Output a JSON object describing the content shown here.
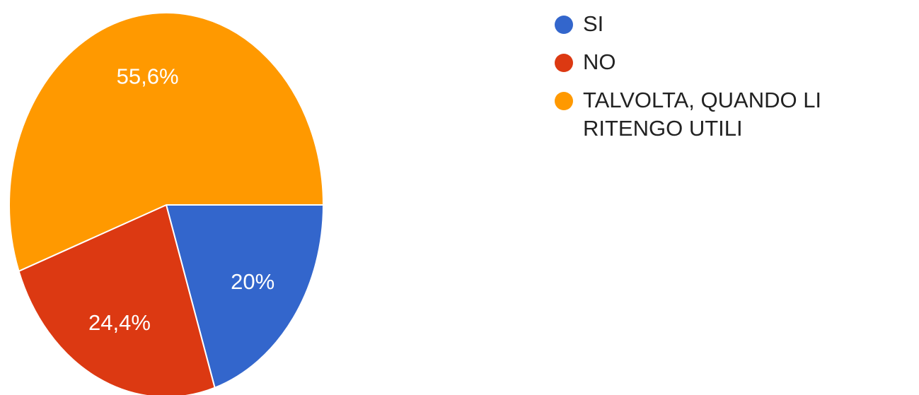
{
  "chart_data": {
    "type": "pie",
    "slices": [
      {
        "label": "SI",
        "value": 20,
        "value_label": "20%",
        "color": "#3366cc"
      },
      {
        "label": "NO",
        "value": 24.4,
        "value_label": "24,4%",
        "color": "#dc3912"
      },
      {
        "label": "TALVOLTA, QUANDO LI RITENGO UTILI",
        "value": 55.6,
        "value_label": "55,6%",
        "color": "#ff9900"
      }
    ],
    "legend_position": "right",
    "start": "3 o'clock, clockwise"
  }
}
